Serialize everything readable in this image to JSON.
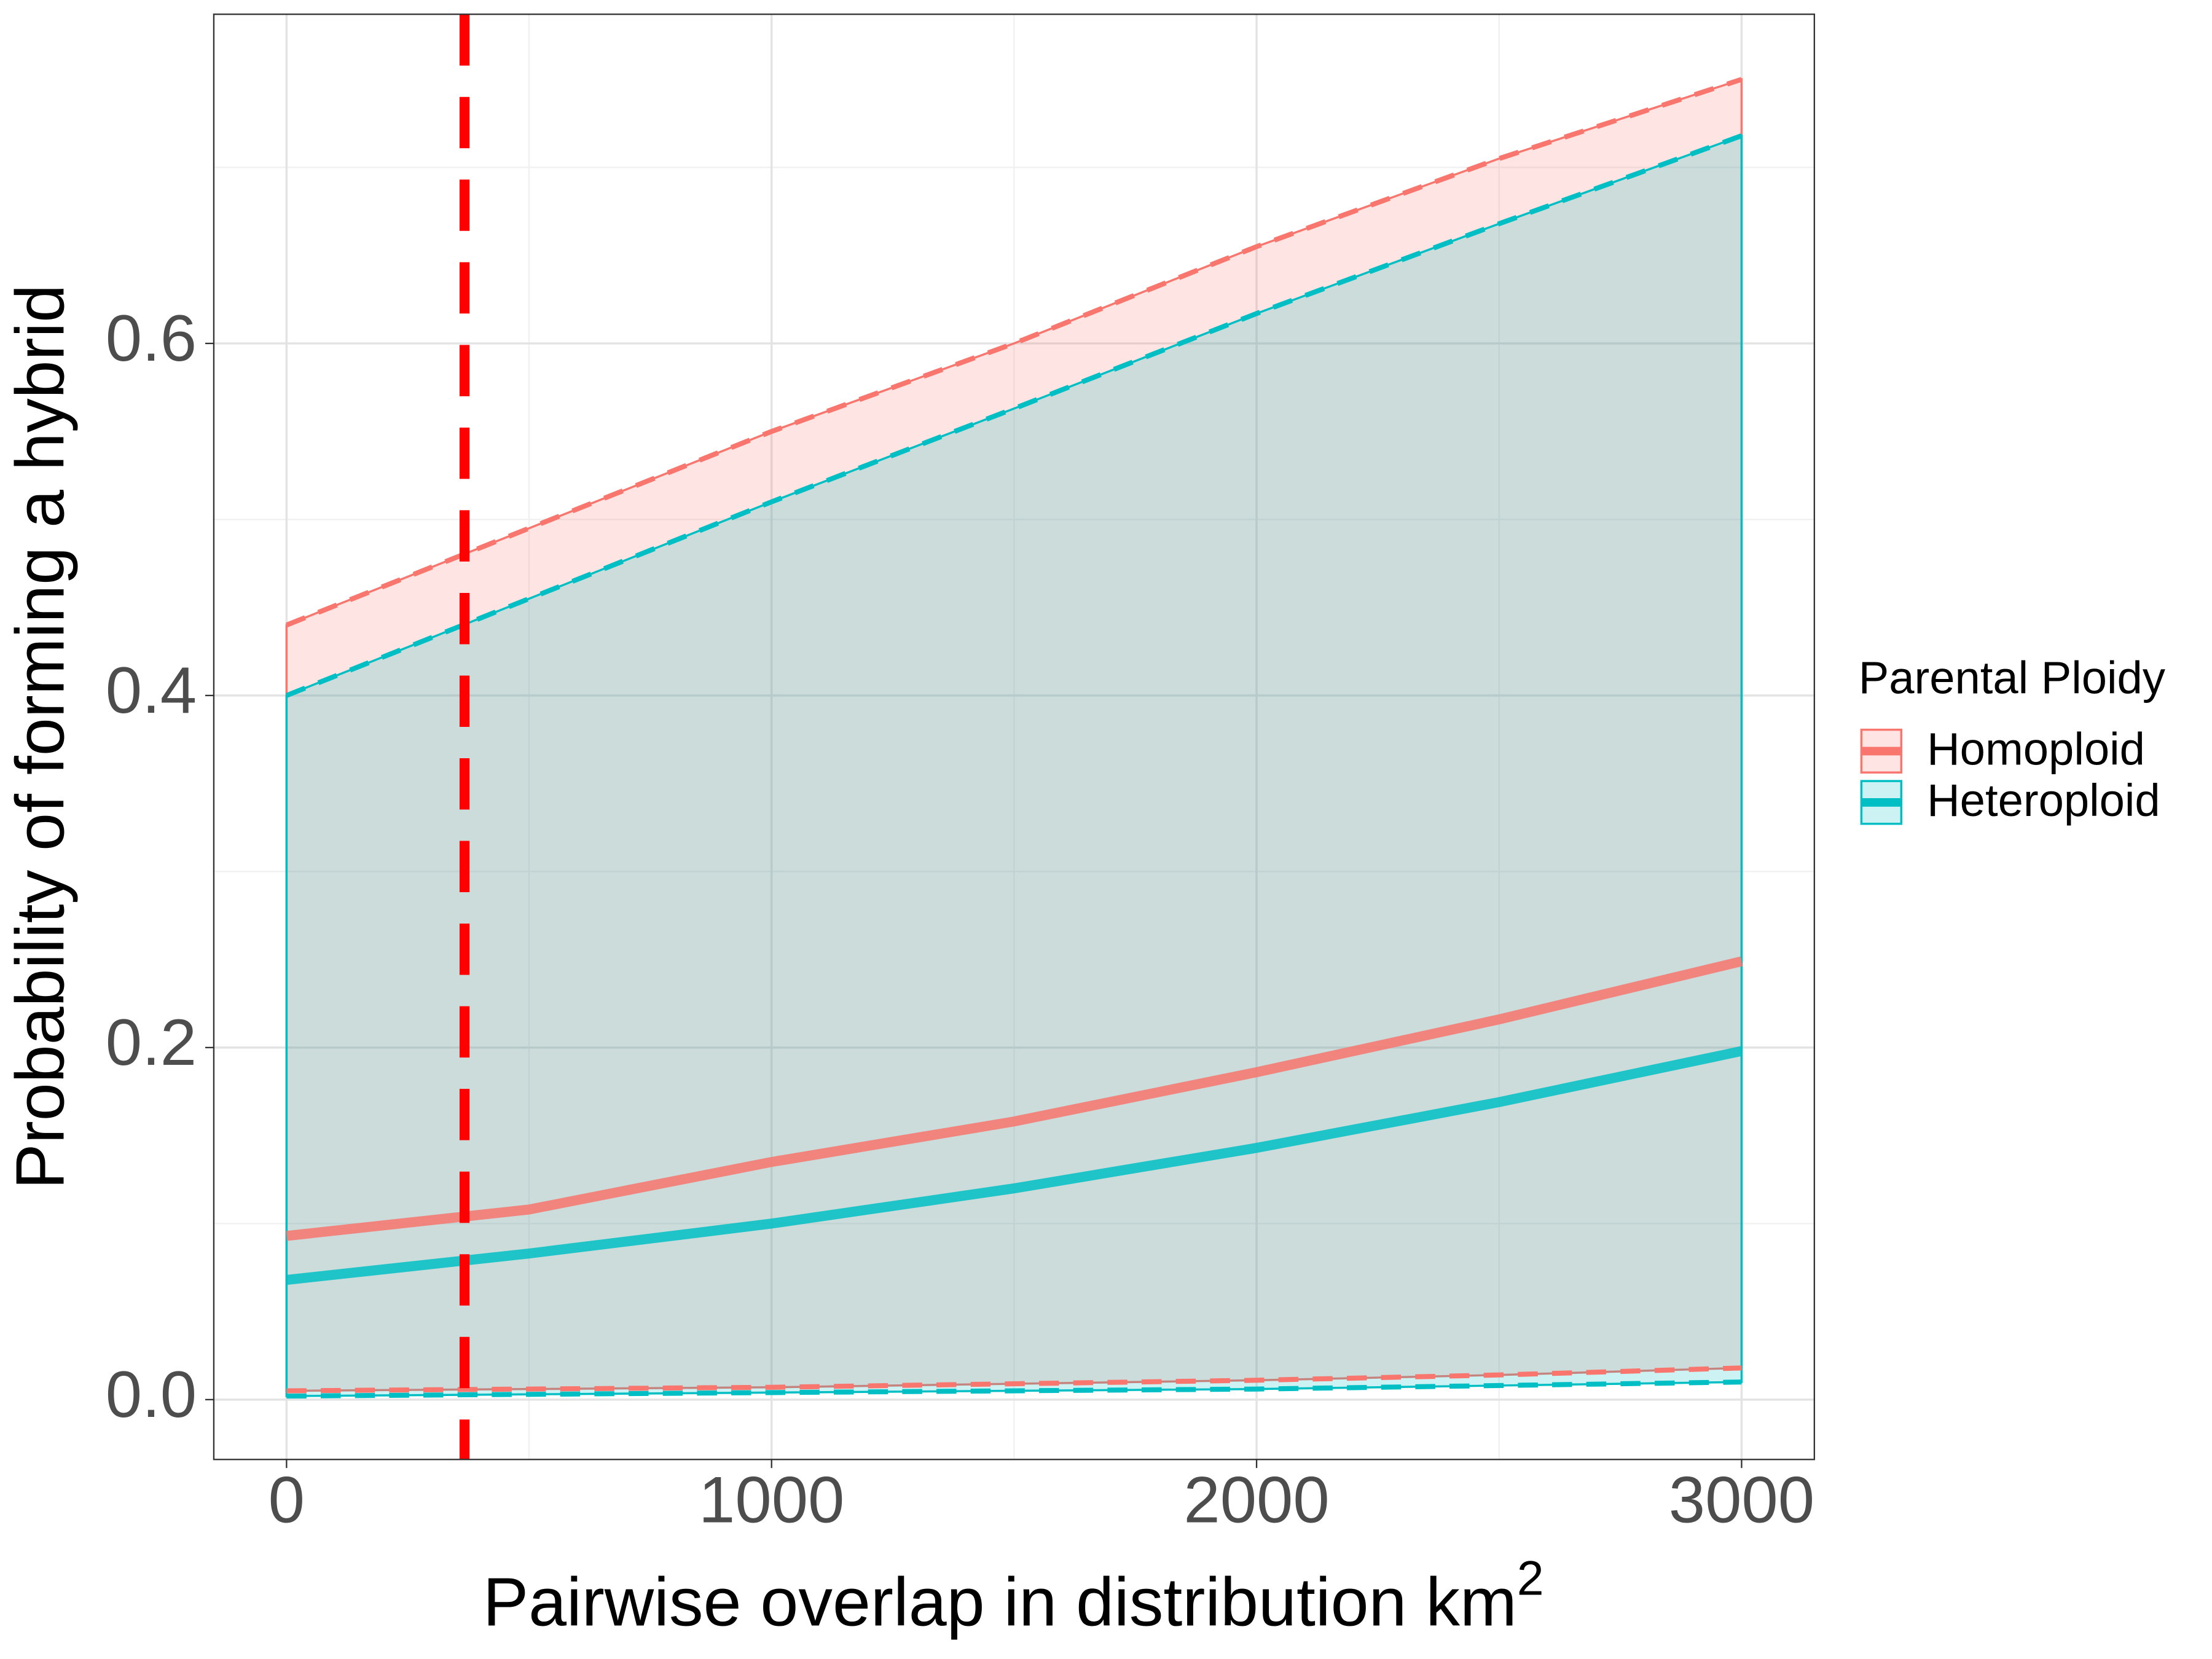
{
  "chart_data": {
    "type": "ribbon-line",
    "xlabel": "Pairwise overlap in distribution km",
    "xlabel_sup": "2",
    "ylabel": "Probability of forming a hybrid",
    "legend_title": "Parental Ploidy",
    "x": [
      0,
      500,
      1000,
      1500,
      2000,
      2500,
      3000
    ],
    "series": [
      {
        "name": "Homoploid",
        "color": "#F8766D",
        "values": [
          0.093,
          0.108,
          0.135,
          0.158,
          0.186,
          0.216,
          0.249
        ],
        "lower": [
          0.005,
          0.006,
          0.007,
          0.009,
          0.011,
          0.014,
          0.018
        ],
        "upper": [
          0.44,
          0.495,
          0.55,
          0.6,
          0.655,
          0.705,
          0.75
        ]
      },
      {
        "name": "Heteroploid",
        "color": "#00BFC4",
        "values": [
          0.068,
          0.083,
          0.1,
          0.12,
          0.143,
          0.169,
          0.198
        ],
        "lower": [
          0.002,
          0.003,
          0.004,
          0.005,
          0.006,
          0.008,
          0.01
        ],
        "upper": [
          0.4,
          0.455,
          0.51,
          0.563,
          0.617,
          0.668,
          0.718
        ]
      }
    ],
    "vline": 367,
    "vline_color": "#FF0000",
    "xlim": [
      -150,
      3150
    ],
    "ylim": [
      -0.034,
      0.787
    ],
    "xticks": [
      0,
      1000,
      2000,
      3000
    ],
    "xminor": [
      500,
      1500,
      2500
    ],
    "yticks": [
      {
        "value": 0,
        "label": "0.0"
      },
      {
        "value": 0.2,
        "label": "0.2"
      },
      {
        "value": 0.4,
        "label": "0.4"
      },
      {
        "value": 0.6,
        "label": "0.6"
      }
    ],
    "yminor": [
      0.1,
      0.3,
      0.5,
      0.7
    ],
    "grid": true,
    "legend": "right"
  }
}
